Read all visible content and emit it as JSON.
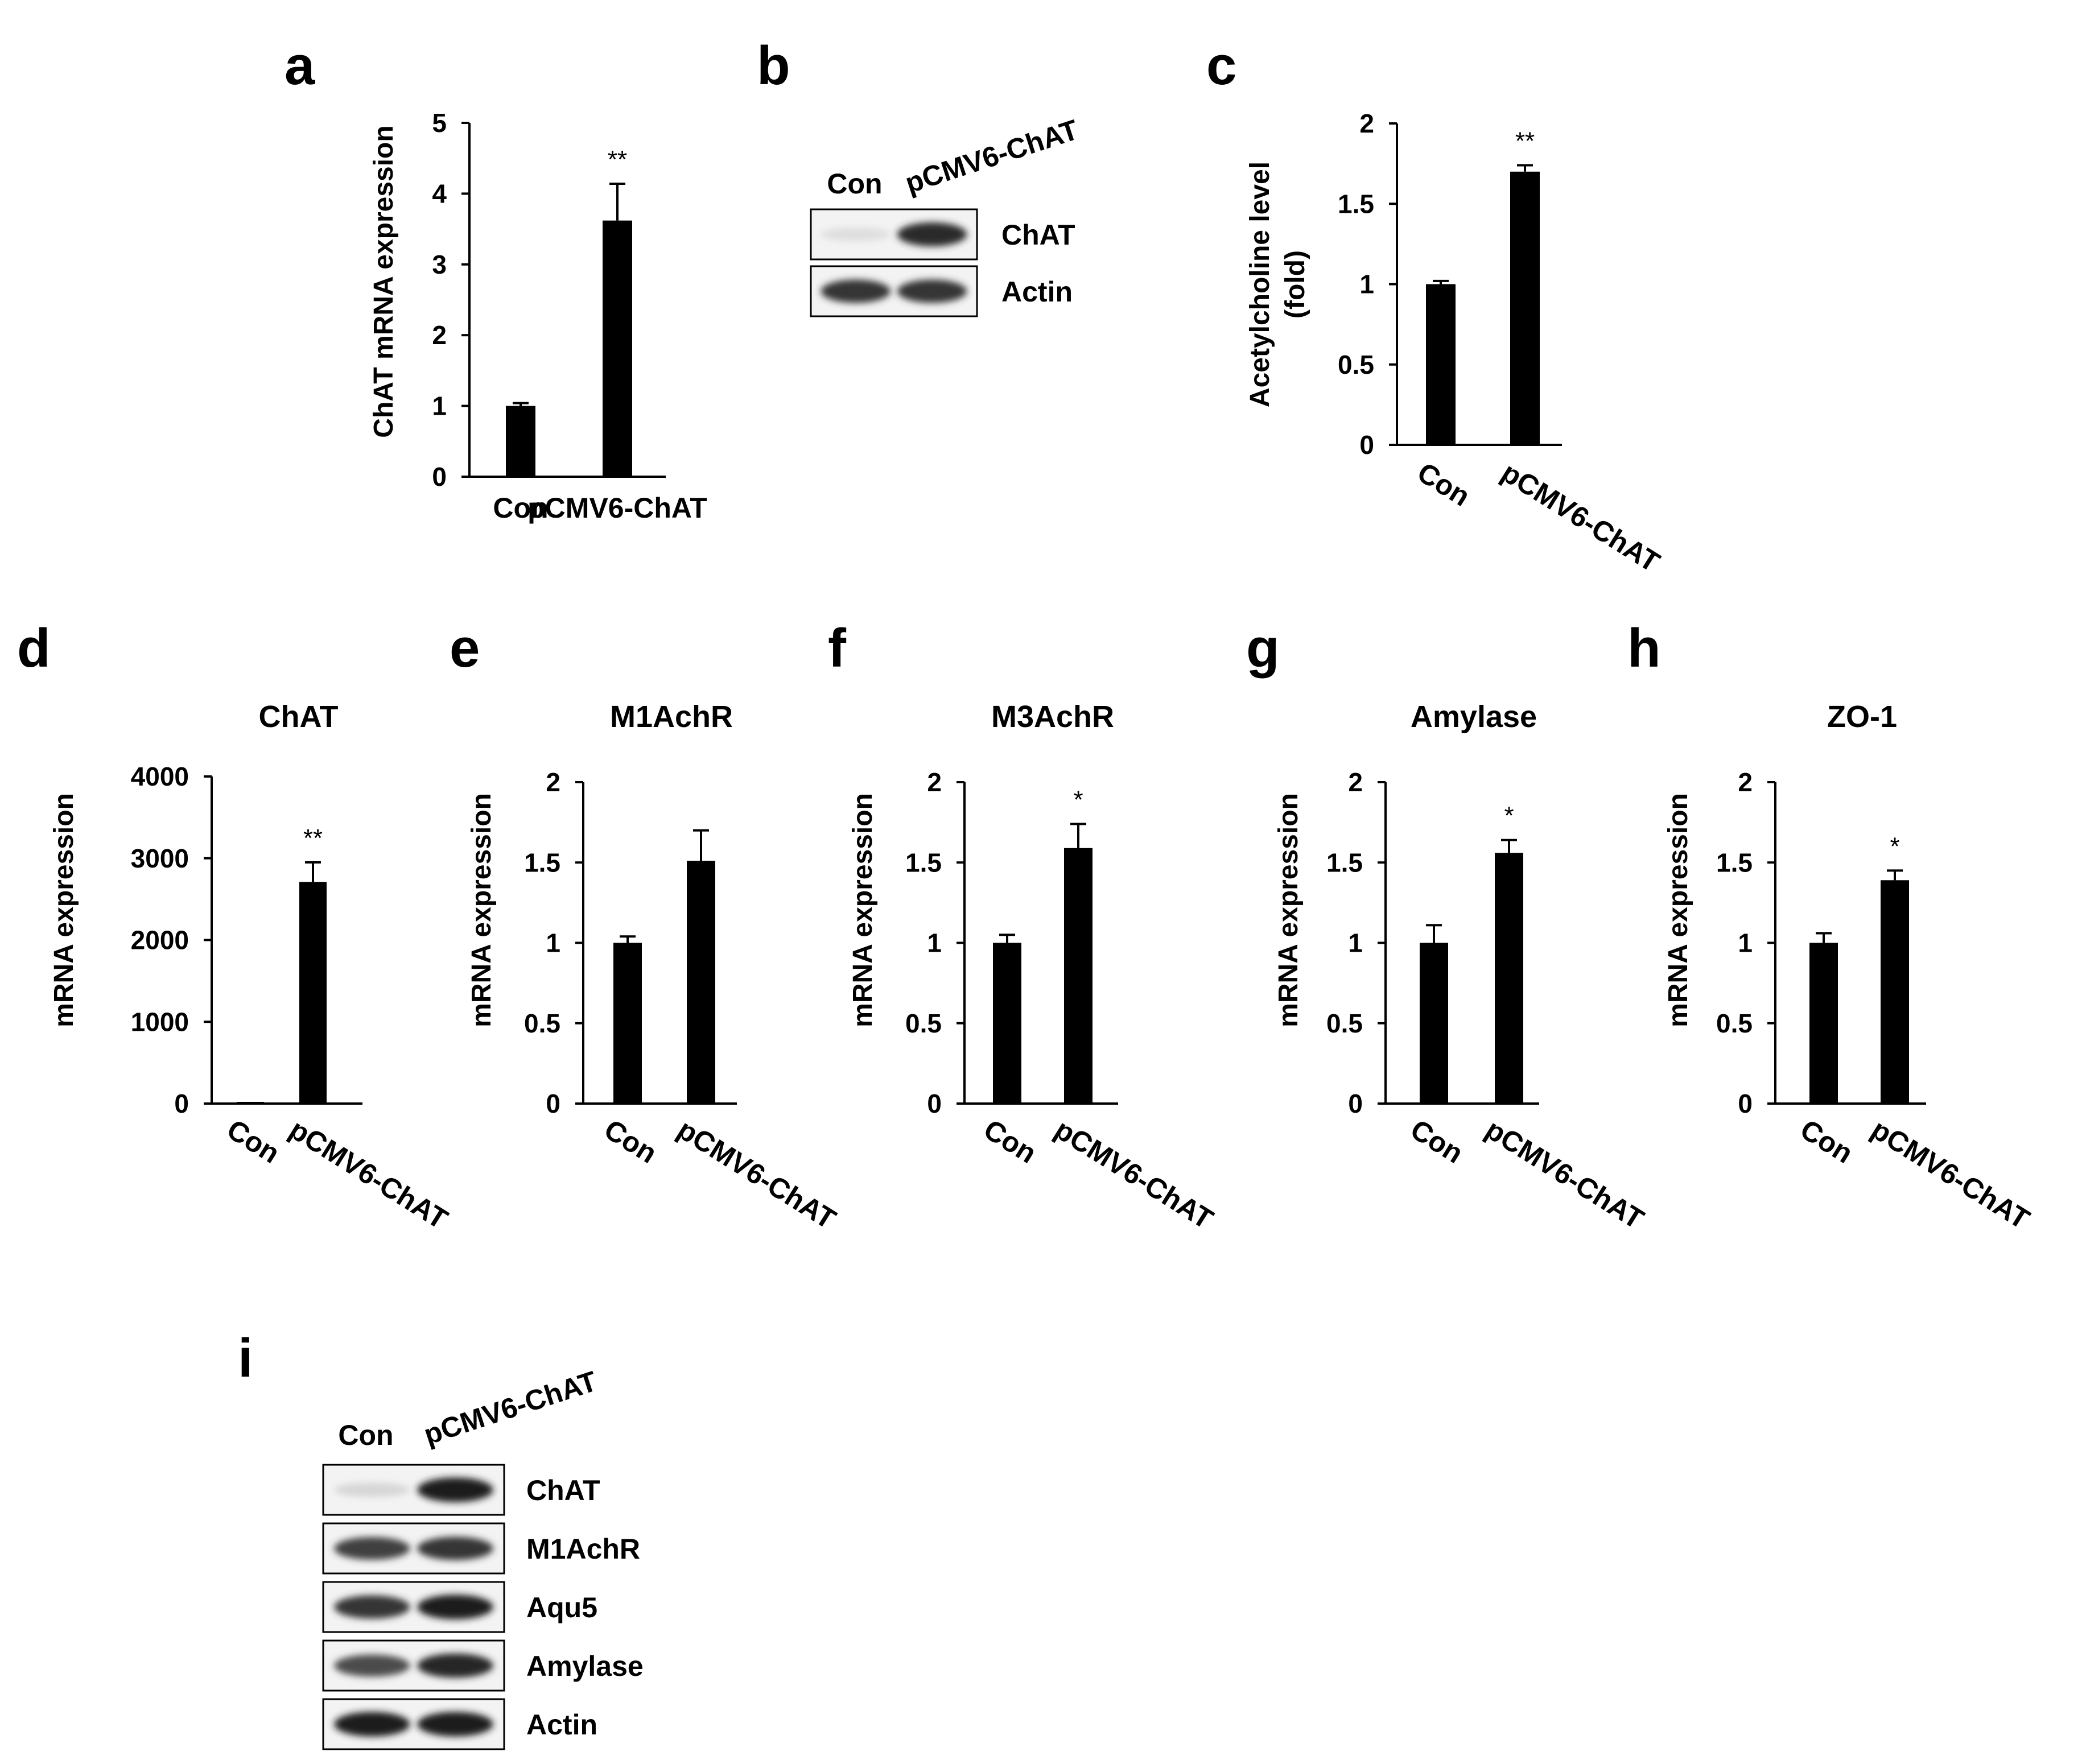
{
  "panel_letters": {
    "a": "a",
    "b": "b",
    "c": "c",
    "d": "d",
    "e": "e",
    "f": "f",
    "g": "g",
    "h": "h",
    "i": "i"
  },
  "chart_data": [
    {
      "id": "a",
      "type": "bar",
      "title": "",
      "categories": [
        "Con",
        "pCMV6-ChAT"
      ],
      "values": [
        1.0,
        3.62
      ],
      "errors": [
        0.04,
        0.52
      ],
      "significance": [
        "",
        "**"
      ],
      "ylabel": "ChAT mRNA expression",
      "xlabel": "",
      "ylim": [
        0,
        5
      ],
      "yticks": [
        "0",
        "1",
        "2",
        "3",
        "4",
        "5"
      ],
      "tick_values": [
        0,
        1,
        2,
        3,
        4,
        5
      ],
      "rotated_categories": false,
      "grid": false,
      "color": "#000000"
    },
    {
      "id": "c",
      "type": "bar",
      "title": "",
      "categories": [
        "Con",
        "pCMV6-ChAT"
      ],
      "values": [
        1.0,
        1.7
      ],
      "errors": [
        0.02,
        0.04
      ],
      "significance": [
        "",
        "**"
      ],
      "ylabel": "Acetylcholine level",
      "ylabel2": "(fold)",
      "xlabel": "",
      "ylim": [
        0,
        2
      ],
      "yticks": [
        "0",
        "0.5",
        "1",
        "1.5",
        "2"
      ],
      "tick_values": [
        0,
        0.5,
        1,
        1.5,
        2
      ],
      "rotated_categories": true,
      "grid": false,
      "color": "#000000"
    },
    {
      "id": "d",
      "type": "bar",
      "title": "ChAT",
      "categories": [
        "Con",
        "pCMV6-ChAT"
      ],
      "values": [
        5,
        2710
      ],
      "errors": [
        0,
        240
      ],
      "significance": [
        "",
        "**"
      ],
      "ylabel": "mRNA expression",
      "xlabel": "",
      "ylim": [
        0,
        4000
      ],
      "yticks": [
        "0",
        "1000",
        "2000",
        "3000",
        "4000"
      ],
      "tick_values": [
        0,
        1000,
        2000,
        3000,
        4000
      ],
      "rotated_categories": true,
      "grid": false,
      "color": "#000000"
    },
    {
      "id": "e",
      "type": "bar",
      "title": "M1AchR",
      "categories": [
        "Con",
        "pCMV6-ChAT"
      ],
      "values": [
        1.0,
        1.51
      ],
      "errors": [
        0.04,
        0.19
      ],
      "significance": [
        "",
        ""
      ],
      "ylabel": "mRNA expression",
      "xlabel": "",
      "ylim": [
        0,
        2
      ],
      "yticks": [
        "0",
        "0.5",
        "1",
        "1.5",
        "2"
      ],
      "tick_values": [
        0,
        0.5,
        1,
        1.5,
        2
      ],
      "rotated_categories": true,
      "grid": false,
      "color": "#000000"
    },
    {
      "id": "f",
      "type": "bar",
      "title": "M3AchR",
      "categories": [
        "Con",
        "pCMV6-ChAT"
      ],
      "values": [
        1.0,
        1.59
      ],
      "errors": [
        0.05,
        0.15
      ],
      "significance": [
        "",
        "*"
      ],
      "ylabel": "mRNA expression",
      "xlabel": "",
      "ylim": [
        0,
        2
      ],
      "yticks": [
        "0",
        "0.5",
        "1",
        "1.5",
        "2"
      ],
      "tick_values": [
        0,
        0.5,
        1,
        1.5,
        2
      ],
      "rotated_categories": true,
      "grid": false,
      "color": "#000000"
    },
    {
      "id": "g",
      "type": "bar",
      "title": "Amylase",
      "categories": [
        "Con",
        "pCMV6-ChAT"
      ],
      "values": [
        1.0,
        1.56
      ],
      "errors": [
        0.11,
        0.08
      ],
      "significance": [
        "",
        "*"
      ],
      "ylabel": "mRNA expression",
      "xlabel": "",
      "ylim": [
        0,
        2
      ],
      "yticks": [
        "0",
        "0.5",
        "1",
        "1.5",
        "2"
      ],
      "tick_values": [
        0,
        0.5,
        1,
        1.5,
        2
      ],
      "rotated_categories": true,
      "grid": false,
      "color": "#000000"
    },
    {
      "id": "h",
      "type": "bar",
      "title": "ZO-1",
      "categories": [
        "Con",
        "pCMV6-ChAT"
      ],
      "values": [
        1.0,
        1.39
      ],
      "errors": [
        0.06,
        0.06
      ],
      "significance": [
        "",
        "*"
      ],
      "ylabel": "mRNA expression",
      "xlabel": "",
      "ylim": [
        0,
        2
      ],
      "yticks": [
        "0",
        "0.5",
        "1",
        "1.5",
        "2"
      ],
      "tick_values": [
        0,
        0.5,
        1,
        1.5,
        2
      ],
      "rotated_categories": true,
      "grid": false,
      "color": "#000000"
    }
  ],
  "blots": {
    "b": {
      "lanes": [
        "Con",
        "pCMV6-ChAT"
      ],
      "bands": [
        {
          "label": "ChAT",
          "con_intensity": 0.08,
          "treated_intensity": 0.9
        },
        {
          "label": "Actin",
          "con_intensity": 0.85,
          "treated_intensity": 0.85
        }
      ]
    },
    "i": {
      "lanes": [
        "Con",
        "pCMV6-ChAT"
      ],
      "bands": [
        {
          "label": "ChAT",
          "con_intensity": 0.12,
          "treated_intensity": 0.95
        },
        {
          "label": "M1AchR",
          "con_intensity": 0.8,
          "treated_intensity": 0.85
        },
        {
          "label": "Aqu5",
          "con_intensity": 0.85,
          "treated_intensity": 0.95
        },
        {
          "label": "Amylase",
          "con_intensity": 0.75,
          "treated_intensity": 0.92
        },
        {
          "label": "Actin",
          "con_intensity": 0.95,
          "treated_intensity": 0.95
        }
      ]
    }
  }
}
